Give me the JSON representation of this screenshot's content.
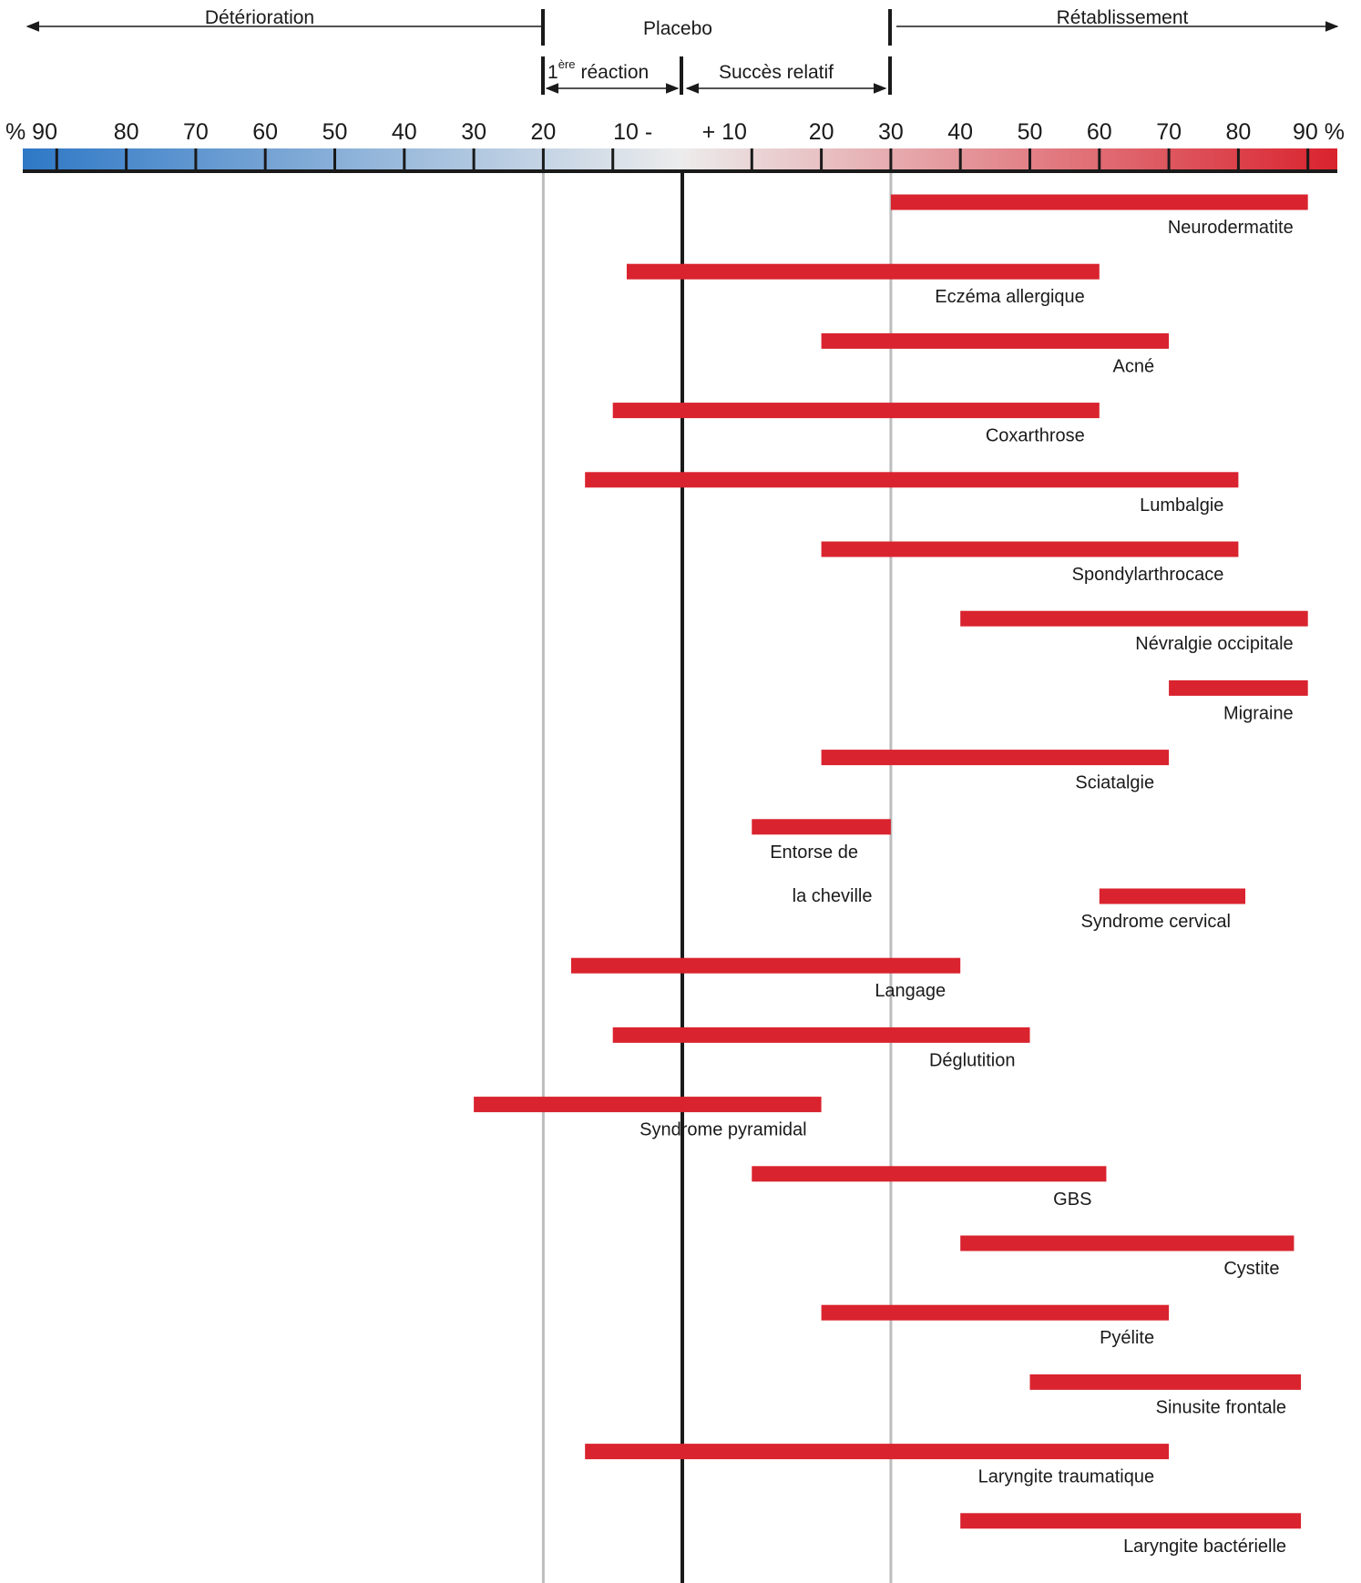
{
  "chart_data": {
    "type": "bar",
    "orientation": "horizontal-range",
    "header": {
      "left_zone": "Détérioration",
      "center_zone": "Placebo",
      "right_zone": "Rétablissement",
      "first_reaction_sup": "ère",
      "first_reaction_num": "1",
      "first_reaction_text": "réaction",
      "relative_success": "Succès relatif"
    },
    "scale": {
      "ticks": [
        {
          "value": -90,
          "label": "% 90"
        },
        {
          "value": -80,
          "label": "80"
        },
        {
          "value": -70,
          "label": "70"
        },
        {
          "value": -60,
          "label": "60"
        },
        {
          "value": -50,
          "label": "50"
        },
        {
          "value": -40,
          "label": "40"
        },
        {
          "value": -30,
          "label": "30"
        },
        {
          "value": -20,
          "label": "20"
        },
        {
          "value": -10,
          "label": "10 -"
        },
        {
          "value": 10,
          "label": "+ 10"
        },
        {
          "value": 20,
          "label": "20"
        },
        {
          "value": 30,
          "label": "30"
        },
        {
          "value": 40,
          "label": "40"
        },
        {
          "value": 50,
          "label": "50"
        },
        {
          "value": 60,
          "label": "60"
        },
        {
          "value": 70,
          "label": "70"
        },
        {
          "value": 80,
          "label": "80"
        },
        {
          "value": 90,
          "label": "90 %"
        }
      ],
      "xlim": [
        -95,
        95
      ],
      "color_negative": "#2e78c6",
      "color_zero": "#ececec",
      "color_positive": "#d9232e"
    },
    "reference_lines": [
      {
        "value": -20,
        "color": "#bdbdbd"
      },
      {
        "value": 0,
        "color": "#1a1a1a"
      },
      {
        "value": 30,
        "color": "#bdbdbd"
      }
    ],
    "bar_color": "#d9232e",
    "bars": [
      {
        "name": "Neurodermatite",
        "start": 30,
        "end": 90
      },
      {
        "name": "Eczéma allergique",
        "start": -8,
        "end": 60
      },
      {
        "name": "Acné",
        "start": 20,
        "end": 70
      },
      {
        "name": "Coxarthrose",
        "start": -10,
        "end": 60
      },
      {
        "name": "Lumbalgie",
        "start": -14,
        "end": 80
      },
      {
        "name": "Spondylarthrocace",
        "start": 20,
        "end": 80
      },
      {
        "name": "Névralgie occipitale",
        "start": 40,
        "end": 90
      },
      {
        "name": "Migraine",
        "start": 70,
        "end": 90
      },
      {
        "name": "Sciatalgie",
        "start": 20,
        "end": 70
      },
      {
        "name": "Entorse de",
        "name_line2": "la cheville",
        "start": 10,
        "end": 30
      },
      {
        "name": "Syndrome cervical",
        "start": 60,
        "end": 81
      },
      {
        "name": "Langage",
        "start": -16,
        "end": 40
      },
      {
        "name": "Déglutition",
        "start": -10,
        "end": 50
      },
      {
        "name": "Syndrome pyramidal",
        "start": -30,
        "end": 20
      },
      {
        "name": "GBS",
        "start": 10,
        "end": 61
      },
      {
        "name": "Cystite",
        "start": 40,
        "end": 88
      },
      {
        "name": "Pyélite",
        "start": 20,
        "end": 70
      },
      {
        "name": "Sinusite frontale",
        "start": 50,
        "end": 89
      },
      {
        "name": "Laryngite traumatique",
        "start": -14,
        "end": 70
      },
      {
        "name": "Laryngite bactérielle",
        "start": 40,
        "end": 89
      }
    ]
  }
}
